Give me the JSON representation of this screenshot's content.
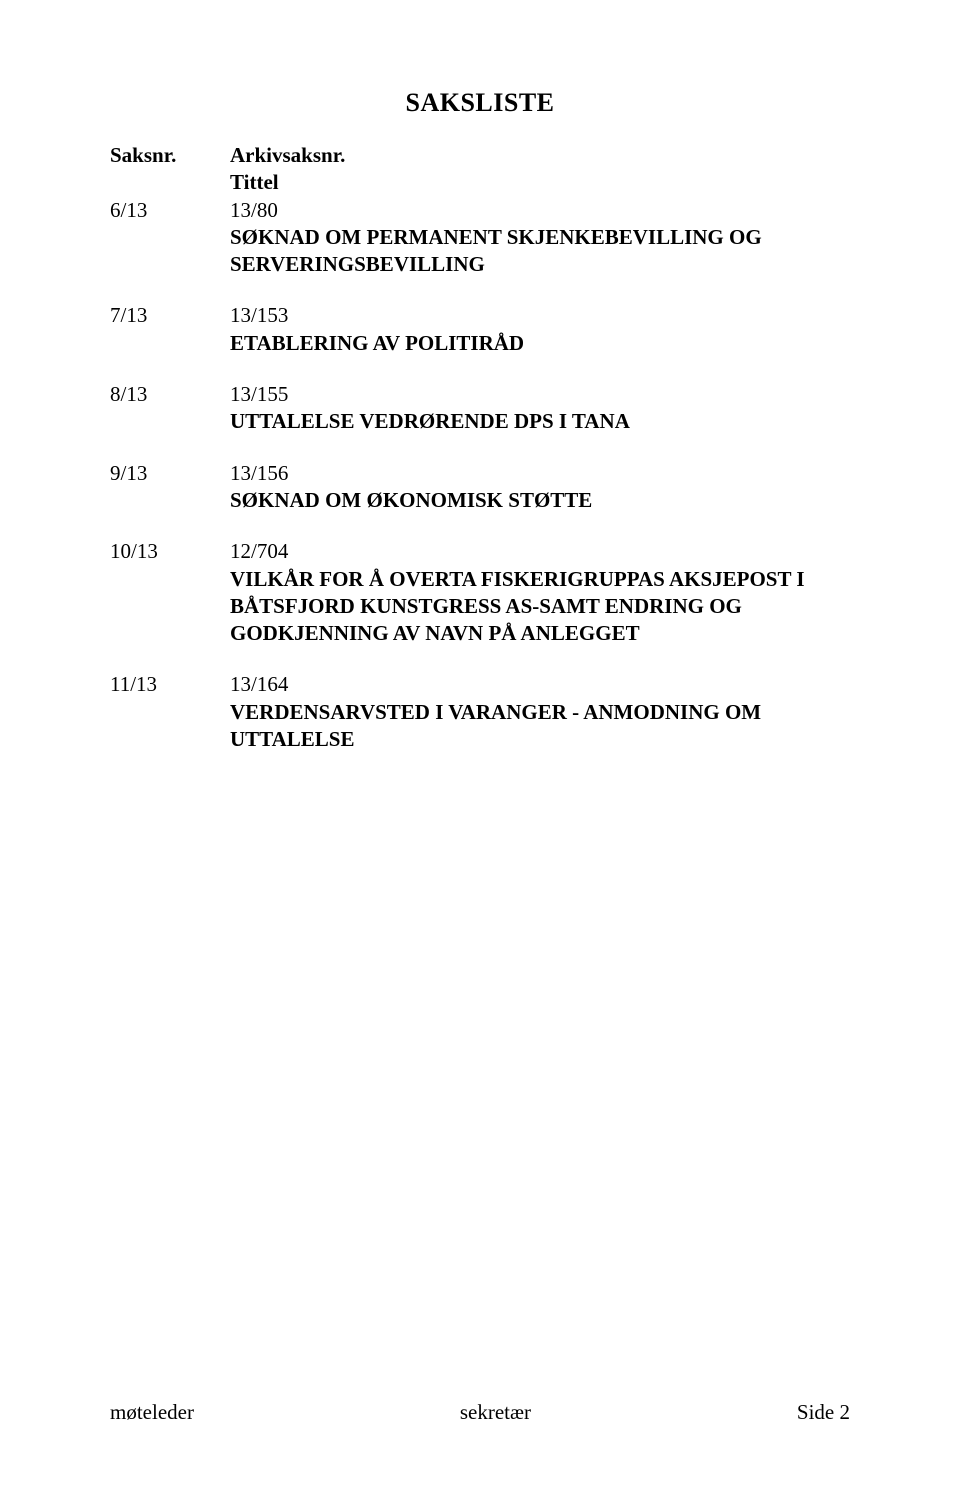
{
  "heading": "SAKSLISTE",
  "headers": {
    "left": "Saksnr.",
    "right_line1": "Arkivsaksnr.",
    "right_line2": "Tittel"
  },
  "items": [
    {
      "saksnr": "6/13",
      "arkivsaksnr": "13/80",
      "title": "SØKNAD OM PERMANENT SKJENKEBEVILLING OG SERVERINGSBEVILLING"
    },
    {
      "saksnr": "7/13",
      "arkivsaksnr": "13/153",
      "title": "ETABLERING AV POLITIRÅD"
    },
    {
      "saksnr": "8/13",
      "arkivsaksnr": "13/155",
      "title": "UTTALELSE VEDRØRENDE DPS I TANA"
    },
    {
      "saksnr": "9/13",
      "arkivsaksnr": "13/156",
      "title": "SØKNAD OM ØKONOMISK STØTTE"
    },
    {
      "saksnr": "10/13",
      "arkivsaksnr": "12/704",
      "title": "VILKÅR FOR Å OVERTA FISKERIGRUPPAS AKSJEPOST I BÅTSFJORD KUNSTGRESS AS-SAMT ENDRING OG GODKJENNING AV NAVN PÅ ANLEGGET"
    },
    {
      "saksnr": "11/13",
      "arkivsaksnr": "13/164",
      "title": "VERDENSARVSTED I VARANGER - ANMODNING OM UTTALELSE"
    }
  ],
  "footer": {
    "left": "møteleder",
    "center": "sekretær",
    "right": "Side 2"
  }
}
